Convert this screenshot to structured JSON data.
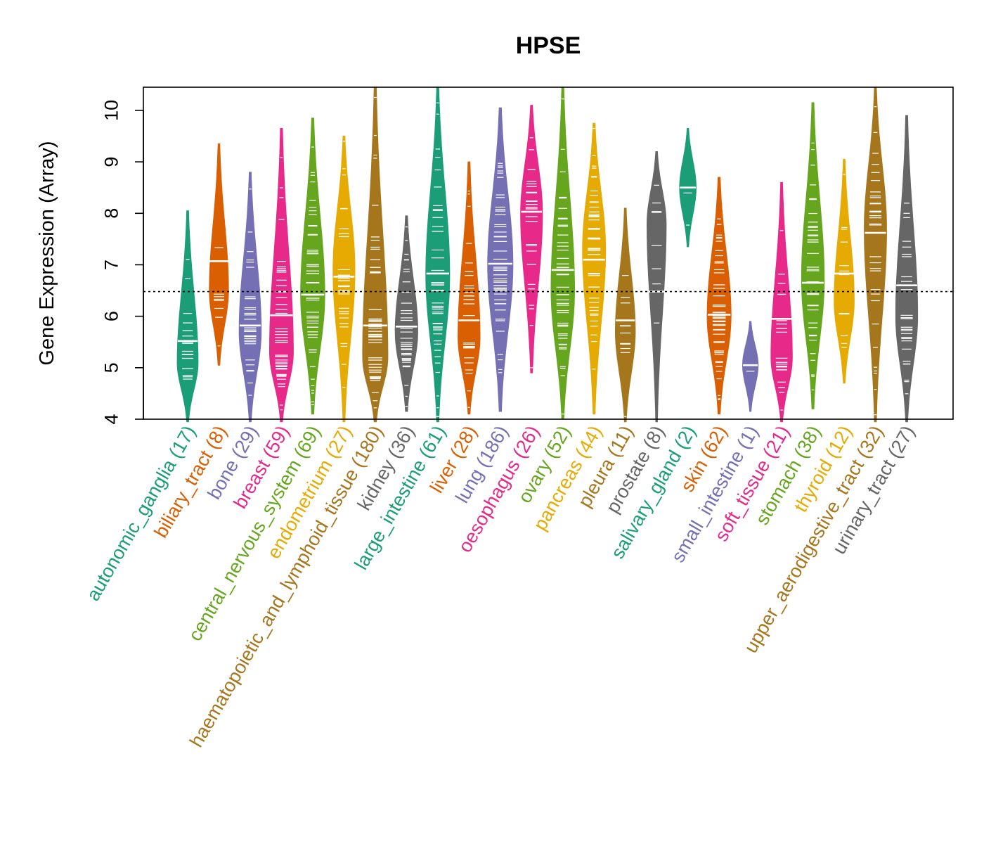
{
  "chart_data": {
    "type": "violin",
    "title": "HPSE",
    "xlabel": "",
    "ylabel": "Gene Expression (Array)",
    "ylim": [
      4,
      10.45
    ],
    "yticks": [
      4,
      5,
      6,
      7,
      8,
      9,
      10
    ],
    "reference_line": 6.48,
    "categories": [
      {
        "name": "autonomic_ganglia",
        "n": 17,
        "label": "autonomic_ganglia (17)",
        "color": "#1B9E77",
        "min": 3.95,
        "max": 8.05,
        "median": 5.52,
        "mode": 5.1
      },
      {
        "name": "biliary_tract",
        "n": 8,
        "label": "biliary_tract (8)",
        "color": "#D95F02",
        "min": 5.05,
        "max": 9.35,
        "median": 7.07,
        "mode": 6.5
      },
      {
        "name": "bone",
        "n": 29,
        "label": "bone (29)",
        "color": "#7570B3",
        "min": 3.95,
        "max": 8.8,
        "median": 5.82,
        "mode": 5.7
      },
      {
        "name": "breast",
        "n": 59,
        "label": "breast (59)",
        "color": "#E7298A",
        "min": 3.95,
        "max": 9.65,
        "median": 6.02,
        "mode": 5.3
      },
      {
        "name": "central_nervous_system",
        "n": 69,
        "label": "central_nervous_system (69)",
        "color": "#66A61E",
        "min": 4.1,
        "max": 9.85,
        "median": 6.42,
        "mode": 6.4
      },
      {
        "name": "endometrium",
        "n": 27,
        "label": "endometrium (27)",
        "color": "#E6AB02",
        "min": 3.95,
        "max": 9.5,
        "median": 6.77,
        "mode": 6.9
      },
      {
        "name": "haematopoietic_and_lymphoid_tissue",
        "n": 180,
        "label": "haematopoietic_and_lymphoid_tissue (180)",
        "color": "#A6761D",
        "min": 3.95,
        "max": 10.45,
        "median": 5.82,
        "mode": 5.2
      },
      {
        "name": "kidney",
        "n": 36,
        "label": "kidney (36)",
        "color": "#666666",
        "min": 4.15,
        "max": 7.95,
        "median": 5.8,
        "mode": 5.7
      },
      {
        "name": "large_intestine",
        "n": 61,
        "label": "large_intestine (61)",
        "color": "#1B9E77",
        "min": 3.95,
        "max": 10.45,
        "median": 6.83,
        "mode": 6.8
      },
      {
        "name": "liver",
        "n": 28,
        "label": "liver (28)",
        "color": "#D95F02",
        "min": 4.1,
        "max": 9.0,
        "median": 5.92,
        "mode": 5.6
      },
      {
        "name": "lung",
        "n": 186,
        "label": "lung (186)",
        "color": "#7570B3",
        "min": 4.15,
        "max": 10.05,
        "median": 7.02,
        "mode": 7.0
      },
      {
        "name": "oesophagus",
        "n": 26,
        "label": "oesophagus (26)",
        "color": "#E7298A",
        "min": 4.9,
        "max": 10.1,
        "median": 8.03,
        "mode": 8.0
      },
      {
        "name": "ovary",
        "n": 52,
        "label": "ovary (52)",
        "color": "#66A61E",
        "min": 4.0,
        "max": 10.45,
        "median": 6.9,
        "mode": 6.5
      },
      {
        "name": "pancreas",
        "n": 44,
        "label": "pancreas (44)",
        "color": "#E6AB02",
        "min": 4.1,
        "max": 9.75,
        "median": 7.1,
        "mode": 7.3
      },
      {
        "name": "pleura",
        "n": 11,
        "label": "pleura (11)",
        "color": "#A6761D",
        "min": 3.95,
        "max": 8.1,
        "median": 5.92,
        "mode": 5.7
      },
      {
        "name": "prostate",
        "n": 8,
        "label": "prostate (8)",
        "color": "#666666",
        "min": 3.95,
        "max": 9.2,
        "median": 6.48,
        "mode": 7.8
      },
      {
        "name": "salivary_gland",
        "n": 2,
        "label": "salivary_gland (2)",
        "color": "#1B9E77",
        "min": 7.35,
        "max": 9.65,
        "median": 8.5,
        "mode": 8.5
      },
      {
        "name": "skin",
        "n": 62,
        "label": "skin (62)",
        "color": "#D95F02",
        "min": 4.1,
        "max": 8.7,
        "median": 6.03,
        "mode": 6.0
      },
      {
        "name": "small_intestine",
        "n": 1,
        "label": "small_intestine (1)",
        "color": "#7570B3",
        "min": 4.15,
        "max": 5.9,
        "median": 5.05,
        "mode": 5.05
      },
      {
        "name": "soft_tissue",
        "n": 21,
        "label": "soft_tissue (21)",
        "color": "#E7298A",
        "min": 3.95,
        "max": 8.6,
        "median": 5.95,
        "mode": 5.2
      },
      {
        "name": "stomach",
        "n": 38,
        "label": "stomach (38)",
        "color": "#66A61E",
        "min": 4.2,
        "max": 10.15,
        "median": 6.65,
        "mode": 6.7
      },
      {
        "name": "thyroid",
        "n": 12,
        "label": "thyroid (12)",
        "color": "#E6AB02",
        "min": 4.7,
        "max": 9.05,
        "median": 6.83,
        "mode": 6.3
      },
      {
        "name": "upper_aerodigestive_tract",
        "n": 32,
        "label": "upper_aerodigestive_tract (32)",
        "color": "#A6761D",
        "min": 3.95,
        "max": 10.45,
        "median": 7.62,
        "mode": 7.7
      },
      {
        "name": "urinary_tract",
        "n": 27,
        "label": "urinary_tract (27)",
        "color": "#666666",
        "min": 3.95,
        "max": 9.9,
        "median": 6.6,
        "mode": 6.0
      }
    ]
  }
}
